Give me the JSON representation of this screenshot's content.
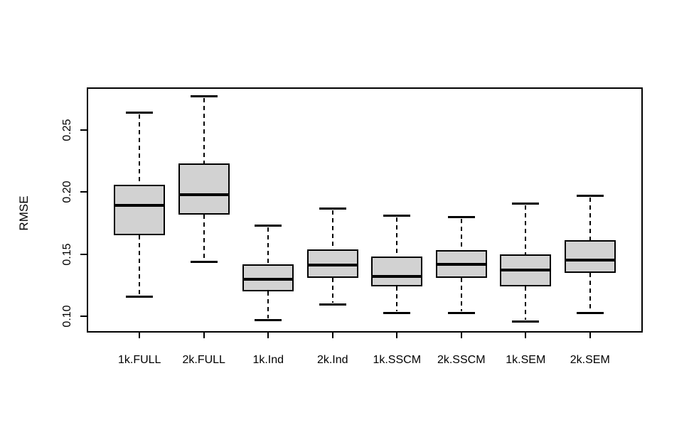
{
  "chart_data": {
    "type": "boxplot",
    "title": "",
    "xlabel": "",
    "ylabel": "RMSE",
    "categories": [
      "1k.FULL",
      "2k.FULL",
      "1k.Ind",
      "2k.Ind",
      "1k.SSCM",
      "2k.SSCM",
      "1k.SEM",
      "2k.SEM"
    ],
    "boxes": [
      {
        "label": "1k.FULL",
        "whisker_low": 0.116,
        "q1": 0.165,
        "median": 0.189,
        "q3": 0.206,
        "whisker_high": 0.264
      },
      {
        "label": "2k.FULL",
        "whisker_low": 0.144,
        "q1": 0.182,
        "median": 0.198,
        "q3": 0.223,
        "whisker_high": 0.277
      },
      {
        "label": "1k.Ind",
        "whisker_low": 0.097,
        "q1": 0.12,
        "median": 0.13,
        "q3": 0.142,
        "whisker_high": 0.173
      },
      {
        "label": "2k.Ind",
        "whisker_low": 0.11,
        "q1": 0.131,
        "median": 0.141,
        "q3": 0.154,
        "whisker_high": 0.187
      },
      {
        "label": "1k.SSCM",
        "whisker_low": 0.103,
        "q1": 0.124,
        "median": 0.132,
        "q3": 0.148,
        "whisker_high": 0.181
      },
      {
        "label": "2k.SSCM",
        "whisker_low": 0.103,
        "q1": 0.131,
        "median": 0.142,
        "q3": 0.153,
        "whisker_high": 0.18
      },
      {
        "label": "1k.SEM",
        "whisker_low": 0.096,
        "q1": 0.124,
        "median": 0.137,
        "q3": 0.15,
        "whisker_high": 0.191
      },
      {
        "label": "2k.SEM",
        "whisker_low": 0.103,
        "q1": 0.135,
        "median": 0.145,
        "q3": 0.161,
        "whisker_high": 0.197
      }
    ],
    "yticks": [
      0.1,
      0.15,
      0.2,
      0.25
    ],
    "ytick_labels": [
      "0.10",
      "0.15",
      "0.20",
      "0.25"
    ],
    "ylim": [
      0.087,
      0.284
    ],
    "grid": false,
    "legend": null,
    "colors": {
      "box_fill": "#d2d2d2",
      "line": "#000000",
      "background": "#ffffff"
    }
  }
}
